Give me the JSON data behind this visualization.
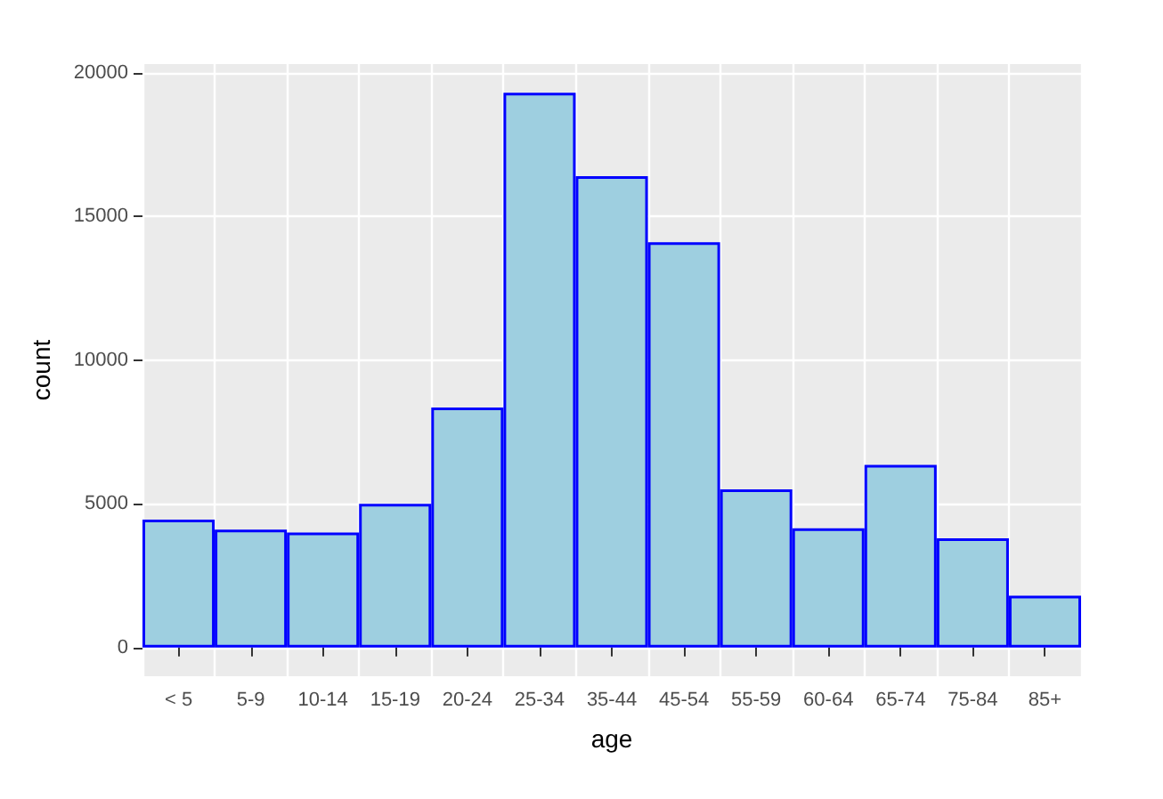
{
  "chart_data": {
    "type": "bar",
    "xlabel": "age",
    "ylabel": "count",
    "categories": [
      "< 5",
      "5-9",
      "10-14",
      "15-19",
      "20-24",
      "25-34",
      "35-44",
      "45-54",
      "55-59",
      "60-64",
      "65-74",
      "75-84",
      "85+"
    ],
    "values": [
      4450,
      4100,
      4000,
      5000,
      8350,
      19300,
      16400,
      14100,
      5500,
      4150,
      6350,
      3800,
      1800
    ],
    "color": "#9ecfe0",
    "ylim": [
      -1000,
      20300
    ],
    "yticks": [
      0,
      5000,
      10000,
      15000,
      20000
    ],
    "grid": true
  }
}
